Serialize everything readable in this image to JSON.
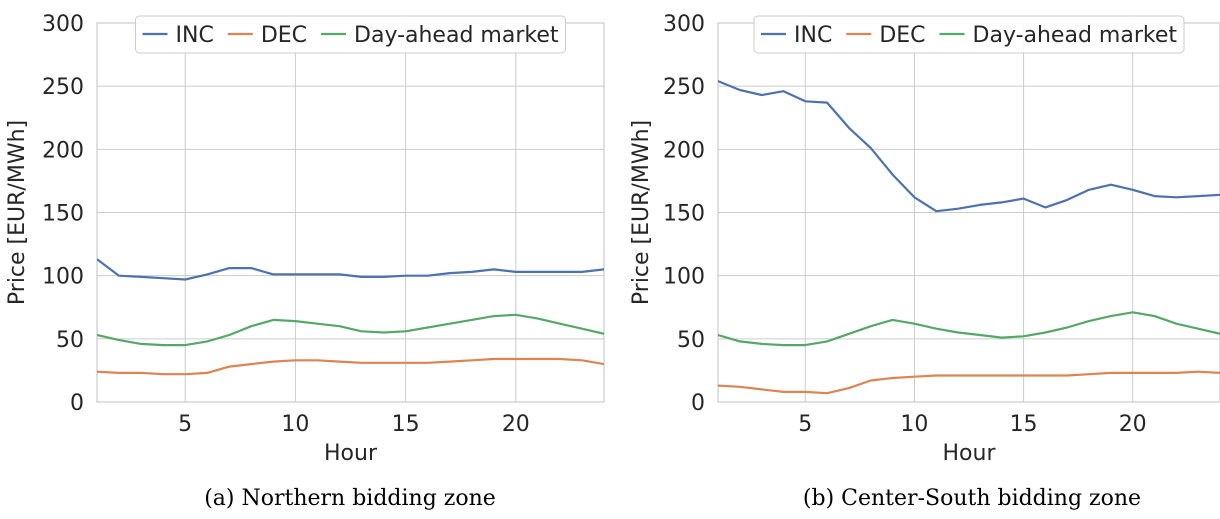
{
  "chart_data": [
    {
      "type": "line",
      "caption": "(a) Northern bidding zone",
      "xlabel": "Hour",
      "ylabel": "Price [EUR/MWh]",
      "xlim": [
        1,
        24
      ],
      "ylim": [
        0,
        300
      ],
      "xticks": [
        5,
        10,
        15,
        20
      ],
      "yticks": [
        0,
        50,
        100,
        150,
        200,
        250,
        300
      ],
      "grid": true,
      "legend_position": "top-center",
      "x": [
        1,
        2,
        3,
        4,
        5,
        6,
        7,
        8,
        9,
        10,
        11,
        12,
        13,
        14,
        15,
        16,
        17,
        18,
        19,
        20,
        21,
        22,
        23,
        24
      ],
      "series": [
        {
          "name": "INC",
          "color": "#4c72b0",
          "values": [
            113,
            100,
            99,
            98,
            97,
            101,
            106,
            106,
            101,
            101,
            101,
            101,
            99,
            99,
            100,
            100,
            102,
            103,
            105,
            103,
            103,
            103,
            103,
            105
          ]
        },
        {
          "name": "DEC",
          "color": "#dd8452",
          "values": [
            24,
            23,
            23,
            22,
            22,
            23,
            28,
            30,
            32,
            33,
            33,
            32,
            31,
            31,
            31,
            31,
            32,
            33,
            34,
            34,
            34,
            34,
            33,
            30
          ]
        },
        {
          "name": "Day-ahead market",
          "color": "#55a868",
          "values": [
            53,
            49,
            46,
            45,
            45,
            48,
            53,
            60,
            65,
            64,
            62,
            60,
            56,
            55,
            56,
            59,
            62,
            65,
            68,
            69,
            66,
            62,
            58,
            54
          ]
        }
      ]
    },
    {
      "type": "line",
      "caption": "(b) Center-South bidding zone",
      "xlabel": "Hour",
      "ylabel": "Price [EUR/MWh]",
      "xlim": [
        1,
        24
      ],
      "ylim": [
        0,
        300
      ],
      "xticks": [
        5,
        10,
        15,
        20
      ],
      "yticks": [
        0,
        50,
        100,
        150,
        200,
        250,
        300
      ],
      "grid": true,
      "legend_position": "top-center",
      "x": [
        1,
        2,
        3,
        4,
        5,
        6,
        7,
        8,
        9,
        10,
        11,
        12,
        13,
        14,
        15,
        16,
        17,
        18,
        19,
        20,
        21,
        22,
        23,
        24
      ],
      "series": [
        {
          "name": "INC",
          "color": "#4c72b0",
          "values": [
            254,
            247,
            243,
            246,
            238,
            237,
            217,
            201,
            180,
            162,
            151,
            153,
            156,
            158,
            161,
            154,
            160,
            168,
            172,
            168,
            163,
            162,
            163,
            164
          ]
        },
        {
          "name": "DEC",
          "color": "#dd8452",
          "values": [
            13,
            12,
            10,
            8,
            8,
            7,
            11,
            17,
            19,
            20,
            21,
            21,
            21,
            21,
            21,
            21,
            21,
            22,
            23,
            23,
            23,
            23,
            24,
            23
          ]
        },
        {
          "name": "Day-ahead market",
          "color": "#55a868",
          "values": [
            53,
            48,
            46,
            45,
            45,
            48,
            54,
            60,
            65,
            62,
            58,
            55,
            53,
            51,
            52,
            55,
            59,
            64,
            68,
            71,
            68,
            62,
            58,
            54
          ]
        }
      ]
    }
  ]
}
